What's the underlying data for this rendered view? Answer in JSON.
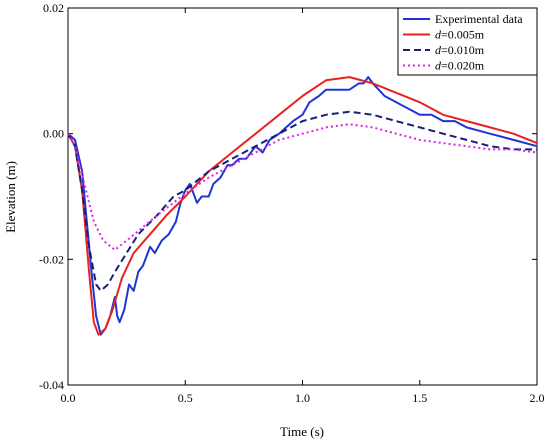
{
  "chart_data": {
    "type": "line",
    "title": "",
    "xlabel": "Time (s)",
    "ylabel": "Elevation (m)",
    "xlim": [
      0.0,
      2.0
    ],
    "ylim": [
      -0.04,
      0.02
    ],
    "xticks": [
      0.0,
      0.5,
      1.0,
      1.5,
      2.0
    ],
    "xtick_labels": [
      "0.0",
      "0.5",
      "1.0",
      "1.5",
      "2.0"
    ],
    "yticks": [
      -0.04,
      -0.02,
      0.0,
      0.02
    ],
    "ytick_labels": [
      "-0.04",
      "-0.02",
      "0.00",
      "0.02"
    ],
    "grid": false,
    "legend_position": "top-right",
    "series": [
      {
        "name": "Experimental data",
        "color": "#1f35d6",
        "dash": "solid",
        "points": [
          [
            0.0,
            0.0
          ],
          [
            0.03,
            -0.001
          ],
          [
            0.06,
            -0.006
          ],
          [
            0.08,
            -0.014
          ],
          [
            0.1,
            -0.022
          ],
          [
            0.12,
            -0.029
          ],
          [
            0.14,
            -0.032
          ],
          [
            0.16,
            -0.031
          ],
          [
            0.18,
            -0.029
          ],
          [
            0.2,
            -0.026
          ],
          [
            0.21,
            -0.029
          ],
          [
            0.22,
            -0.03
          ],
          [
            0.24,
            -0.028
          ],
          [
            0.26,
            -0.024
          ],
          [
            0.28,
            -0.025
          ],
          [
            0.3,
            -0.022
          ],
          [
            0.32,
            -0.021
          ],
          [
            0.35,
            -0.018
          ],
          [
            0.37,
            -0.019
          ],
          [
            0.4,
            -0.017
          ],
          [
            0.43,
            -0.016
          ],
          [
            0.46,
            -0.014
          ],
          [
            0.48,
            -0.011
          ],
          [
            0.5,
            -0.009
          ],
          [
            0.52,
            -0.008
          ],
          [
            0.55,
            -0.011
          ],
          [
            0.57,
            -0.01
          ],
          [
            0.6,
            -0.01
          ],
          [
            0.62,
            -0.008
          ],
          [
            0.65,
            -0.007
          ],
          [
            0.68,
            -0.005
          ],
          [
            0.7,
            -0.005
          ],
          [
            0.73,
            -0.004
          ],
          [
            0.76,
            -0.004
          ],
          [
            0.8,
            -0.002
          ],
          [
            0.83,
            -0.003
          ],
          [
            0.86,
            -0.001
          ],
          [
            0.9,
            0.0
          ],
          [
            0.93,
            0.001
          ],
          [
            0.96,
            0.002
          ],
          [
            1.0,
            0.003
          ],
          [
            1.03,
            0.005
          ],
          [
            1.07,
            0.006
          ],
          [
            1.1,
            0.007
          ],
          [
            1.15,
            0.007
          ],
          [
            1.2,
            0.007
          ],
          [
            1.24,
            0.008
          ],
          [
            1.26,
            0.008
          ],
          [
            1.28,
            0.009
          ],
          [
            1.3,
            0.008
          ],
          [
            1.35,
            0.006
          ],
          [
            1.4,
            0.005
          ],
          [
            1.45,
            0.004
          ],
          [
            1.5,
            0.003
          ],
          [
            1.55,
            0.003
          ],
          [
            1.6,
            0.002
          ],
          [
            1.65,
            0.002
          ],
          [
            1.7,
            0.001
          ],
          [
            1.8,
            0.0
          ],
          [
            1.9,
            -0.001
          ],
          [
            2.0,
            -0.002
          ]
        ]
      },
      {
        "name": "d=0.005m",
        "color": "#e8221e",
        "dash": "solid",
        "points": [
          [
            0.0,
            0.0
          ],
          [
            0.03,
            -0.002
          ],
          [
            0.06,
            -0.009
          ],
          [
            0.09,
            -0.022
          ],
          [
            0.11,
            -0.03
          ],
          [
            0.13,
            -0.032
          ],
          [
            0.16,
            -0.031
          ],
          [
            0.19,
            -0.028
          ],
          [
            0.23,
            -0.023
          ],
          [
            0.28,
            -0.019
          ],
          [
            0.35,
            -0.016
          ],
          [
            0.42,
            -0.013
          ],
          [
            0.5,
            -0.01
          ],
          [
            0.6,
            -0.006
          ],
          [
            0.7,
            -0.003
          ],
          [
            0.8,
            0.0
          ],
          [
            0.9,
            0.003
          ],
          [
            1.0,
            0.006
          ],
          [
            1.1,
            0.0085
          ],
          [
            1.2,
            0.009
          ],
          [
            1.3,
            0.008
          ],
          [
            1.4,
            0.0065
          ],
          [
            1.5,
            0.005
          ],
          [
            1.6,
            0.003
          ],
          [
            1.7,
            0.002
          ],
          [
            1.8,
            0.001
          ],
          [
            1.9,
            0.0
          ],
          [
            2.0,
            -0.0015
          ]
        ]
      },
      {
        "name": "d=0.010m",
        "color": "#1a1f7a",
        "dash": "dashed",
        "points": [
          [
            0.0,
            0.0
          ],
          [
            0.03,
            -0.002
          ],
          [
            0.06,
            -0.009
          ],
          [
            0.09,
            -0.018
          ],
          [
            0.12,
            -0.024
          ],
          [
            0.14,
            -0.025
          ],
          [
            0.17,
            -0.024
          ],
          [
            0.2,
            -0.022
          ],
          [
            0.25,
            -0.019
          ],
          [
            0.3,
            -0.016
          ],
          [
            0.38,
            -0.013
          ],
          [
            0.45,
            -0.01
          ],
          [
            0.5,
            -0.009
          ],
          [
            0.6,
            -0.006
          ],
          [
            0.7,
            -0.004
          ],
          [
            0.8,
            -0.002
          ],
          [
            0.9,
            0.0
          ],
          [
            1.0,
            0.002
          ],
          [
            1.1,
            0.003
          ],
          [
            1.2,
            0.0035
          ],
          [
            1.3,
            0.003
          ],
          [
            1.4,
            0.002
          ],
          [
            1.5,
            0.001
          ],
          [
            1.6,
            0.0
          ],
          [
            1.7,
            -0.001
          ],
          [
            1.8,
            -0.002
          ],
          [
            1.9,
            -0.0025
          ],
          [
            2.0,
            -0.0025
          ]
        ]
      },
      {
        "name": "d=0.020m",
        "color": "#e020e8",
        "dash": "dotted",
        "points": [
          [
            0.0,
            0.0
          ],
          [
            0.03,
            -0.002
          ],
          [
            0.07,
            -0.008
          ],
          [
            0.11,
            -0.014
          ],
          [
            0.15,
            -0.017
          ],
          [
            0.2,
            -0.0185
          ],
          [
            0.25,
            -0.017
          ],
          [
            0.3,
            -0.0155
          ],
          [
            0.38,
            -0.013
          ],
          [
            0.45,
            -0.011
          ],
          [
            0.5,
            -0.0095
          ],
          [
            0.6,
            -0.007
          ],
          [
            0.7,
            -0.005
          ],
          [
            0.8,
            -0.003
          ],
          [
            0.9,
            -0.001
          ],
          [
            1.0,
            0.0
          ],
          [
            1.1,
            0.001
          ],
          [
            1.2,
            0.0015
          ],
          [
            1.3,
            0.001
          ],
          [
            1.4,
            0.0
          ],
          [
            1.5,
            -0.001
          ],
          [
            1.6,
            -0.0015
          ],
          [
            1.7,
            -0.002
          ],
          [
            1.8,
            -0.0025
          ],
          [
            1.9,
            -0.0025
          ],
          [
            2.0,
            -0.003
          ]
        ]
      }
    ],
    "legend": [
      {
        "label": "Experimental data",
        "italic_prefix": "",
        "rest": "Experimental data"
      },
      {
        "label": "d=0.005m",
        "italic_prefix": "d",
        "rest": "=0.005m"
      },
      {
        "label": "d=0.010m",
        "italic_prefix": "d",
        "rest": "=0.010m"
      },
      {
        "label": "d=0.020m",
        "italic_prefix": "d",
        "rest": "=0.020m"
      }
    ]
  }
}
